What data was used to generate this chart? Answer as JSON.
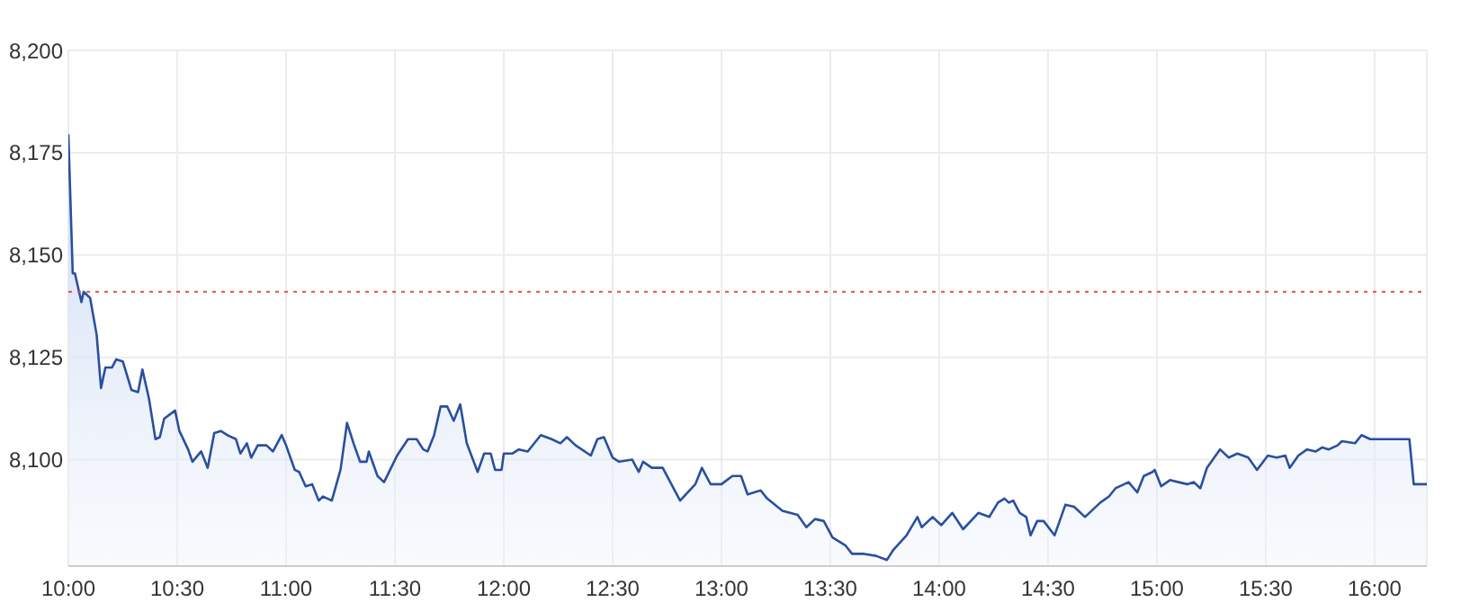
{
  "chart_data": {
    "type": "area",
    "color": "#2b4f9e",
    "x": [
      10,
      10.02,
      10.03,
      10.06,
      10.07,
      10.1,
      10.13,
      10.15,
      10.17,
      10.2,
      10.22,
      10.25,
      10.29,
      10.32,
      10.34,
      10.37,
      10.4,
      10.42,
      10.44,
      10.49,
      10.51,
      10.55,
      10.57,
      10.61,
      10.64,
      10.67,
      10.7,
      10.73,
      10.77,
      10.79,
      10.82,
      10.84,
      10.87,
      10.91,
      10.94,
      10.98,
      11,
      11.04,
      11.06,
      11.09,
      11.12,
      11.15,
      11.17,
      11.21,
      11.25,
      11.28,
      11.31,
      11.34,
      11.37,
      11.38,
      11.42,
      11.45,
      11.51,
      11.56,
      11.6,
      11.63,
      11.65,
      11.68,
      11.71,
      11.74,
      11.77,
      11.8,
      11.83,
      11.88,
      11.91,
      11.94,
      11.96,
      11.99,
      12,
      12.04,
      12.07,
      12.11,
      12.17,
      12.22,
      12.26,
      12.29,
      12.33,
      12.4,
      12.43,
      12.46,
      12.5,
      12.53,
      12.59,
      12.62,
      12.64,
      12.68,
      12.73,
      12.81,
      12.88,
      12.91,
      12.95,
      13,
      13.05,
      13.09,
      13.12,
      13.18,
      13.21,
      13.28,
      13.35,
      13.39,
      13.43,
      13.47,
      13.51,
      13.57,
      13.6,
      13.65,
      13.71,
      13.76,
      13.79,
      13.85,
      13.9,
      13.92,
      13.97,
      14.01,
      14.06,
      14.11,
      14.18,
      14.23,
      14.27,
      14.3,
      14.32,
      14.34,
      14.37,
      14.4,
      14.42,
      14.45,
      14.48,
      14.53,
      14.58,
      14.62,
      14.67,
      14.74,
      14.78,
      14.81,
      14.87,
      14.91,
      14.94,
      14.98,
      14.99,
      15.02,
      15.06,
      15.1,
      15.14,
      15.17,
      15.2,
      15.23,
      15.29,
      15.33,
      15.37,
      15.42,
      15.46,
      15.51,
      15.55,
      15.59,
      15.61,
      15.65,
      15.69,
      15.73,
      15.76,
      15.79,
      15.83,
      15.85,
      15.91,
      15.94,
      15.98,
      16.16,
      16.18,
      16.24
    ],
    "values": [
      8179.5,
      8145.5,
      8145.5,
      8138.5,
      8141,
      8139.5,
      8130.5,
      8117.5,
      8122.5,
      8122.5,
      8124.5,
      8124,
      8117,
      8116.5,
      8122,
      8115,
      8105,
      8105.5,
      8110,
      8112,
      8107,
      8102.5,
      8099.5,
      8102,
      8098,
      8106.5,
      8107,
      8106,
      8105,
      8101.5,
      8104,
      8100.5,
      8103.5,
      8103.5,
      8102,
      8106,
      8103.5,
      8097.5,
      8097,
      8093.5,
      8094,
      8090,
      8091,
      8090,
      8097.5,
      8109,
      8104,
      8099.5,
      8099.5,
      8102,
      8096,
      8094.5,
      8101,
      8105,
      8105,
      8102.5,
      8102,
      8106,
      8113,
      8113,
      8109.5,
      8113.5,
      8104,
      8097,
      8101.5,
      8101.5,
      8097.5,
      8097.5,
      8101.5,
      8101.5,
      8102.5,
      8102,
      8106,
      8105,
      8104,
      8105.5,
      8103.5,
      8101,
      8105,
      8105.5,
      8100.5,
      8099.5,
      8100,
      8097,
      8099.5,
      8098,
      8098,
      8090,
      8094,
      8098,
      8094,
      8094,
      8096,
      8096,
      8091.5,
      8092.5,
      8090.5,
      8087.5,
      8086.5,
      8083.5,
      8085.5,
      8085,
      8081,
      8079,
      8077,
      8077,
      8076.5,
      8075.5,
      8078,
      8081.5,
      8086,
      8083.5,
      8086,
      8084,
      8087,
      8083,
      8087,
      8086,
      8089.5,
      8090.5,
      8089.5,
      8090,
      8087,
      8086,
      8081.5,
      8085,
      8085,
      8081.5,
      8089,
      8088.5,
      8086,
      8089.5,
      8091,
      8093,
      8094.5,
      8092,
      8096,
      8097,
      8097.5,
      8093.5,
      8095,
      8094.5,
      8094,
      8094.5,
      8093,
      8098,
      8102.5,
      8100.5,
      8101.5,
      8100.5,
      8097.5,
      8101,
      8100.5,
      8101,
      8098,
      8101,
      8102.5,
      8102,
      8103,
      8102.5,
      8103.5,
      8104.5,
      8104,
      8106,
      8105,
      8105,
      8094,
      8094
    ],
    "xlim": [
      10,
      16.24
    ],
    "xticks": [
      {
        "value": 10,
        "label": "10:00"
      },
      {
        "value": 10.5,
        "label": "10:30"
      },
      {
        "value": 11,
        "label": "11:00"
      },
      {
        "value": 11.5,
        "label": "11:30"
      },
      {
        "value": 12,
        "label": "12:00"
      },
      {
        "value": 12.5,
        "label": "12:30"
      },
      {
        "value": 13,
        "label": "13:00"
      },
      {
        "value": 13.5,
        "label": "13:30"
      },
      {
        "value": 14,
        "label": "14:00"
      },
      {
        "value": 14.5,
        "label": "14:30"
      },
      {
        "value": 15,
        "label": "15:00"
      },
      {
        "value": 15.5,
        "label": "15:30"
      },
      {
        "value": 16,
        "label": "16:00"
      }
    ],
    "ylim": [
      8074,
      8200
    ],
    "yticks": [
      {
        "value": 8100,
        "label": "8,100"
      },
      {
        "value": 8125,
        "label": "8,125"
      },
      {
        "value": 8150,
        "label": "8,150"
      },
      {
        "value": 8175,
        "label": "8,175"
      },
      {
        "value": 8200,
        "label": "8,200"
      }
    ],
    "ref_lines": [
      {
        "axis": "y",
        "value": 8141,
        "color": "#d9534f",
        "line_style": "dotted"
      }
    ],
    "grid": true,
    "legend": false,
    "marker": "none",
    "line_style": "solid"
  }
}
